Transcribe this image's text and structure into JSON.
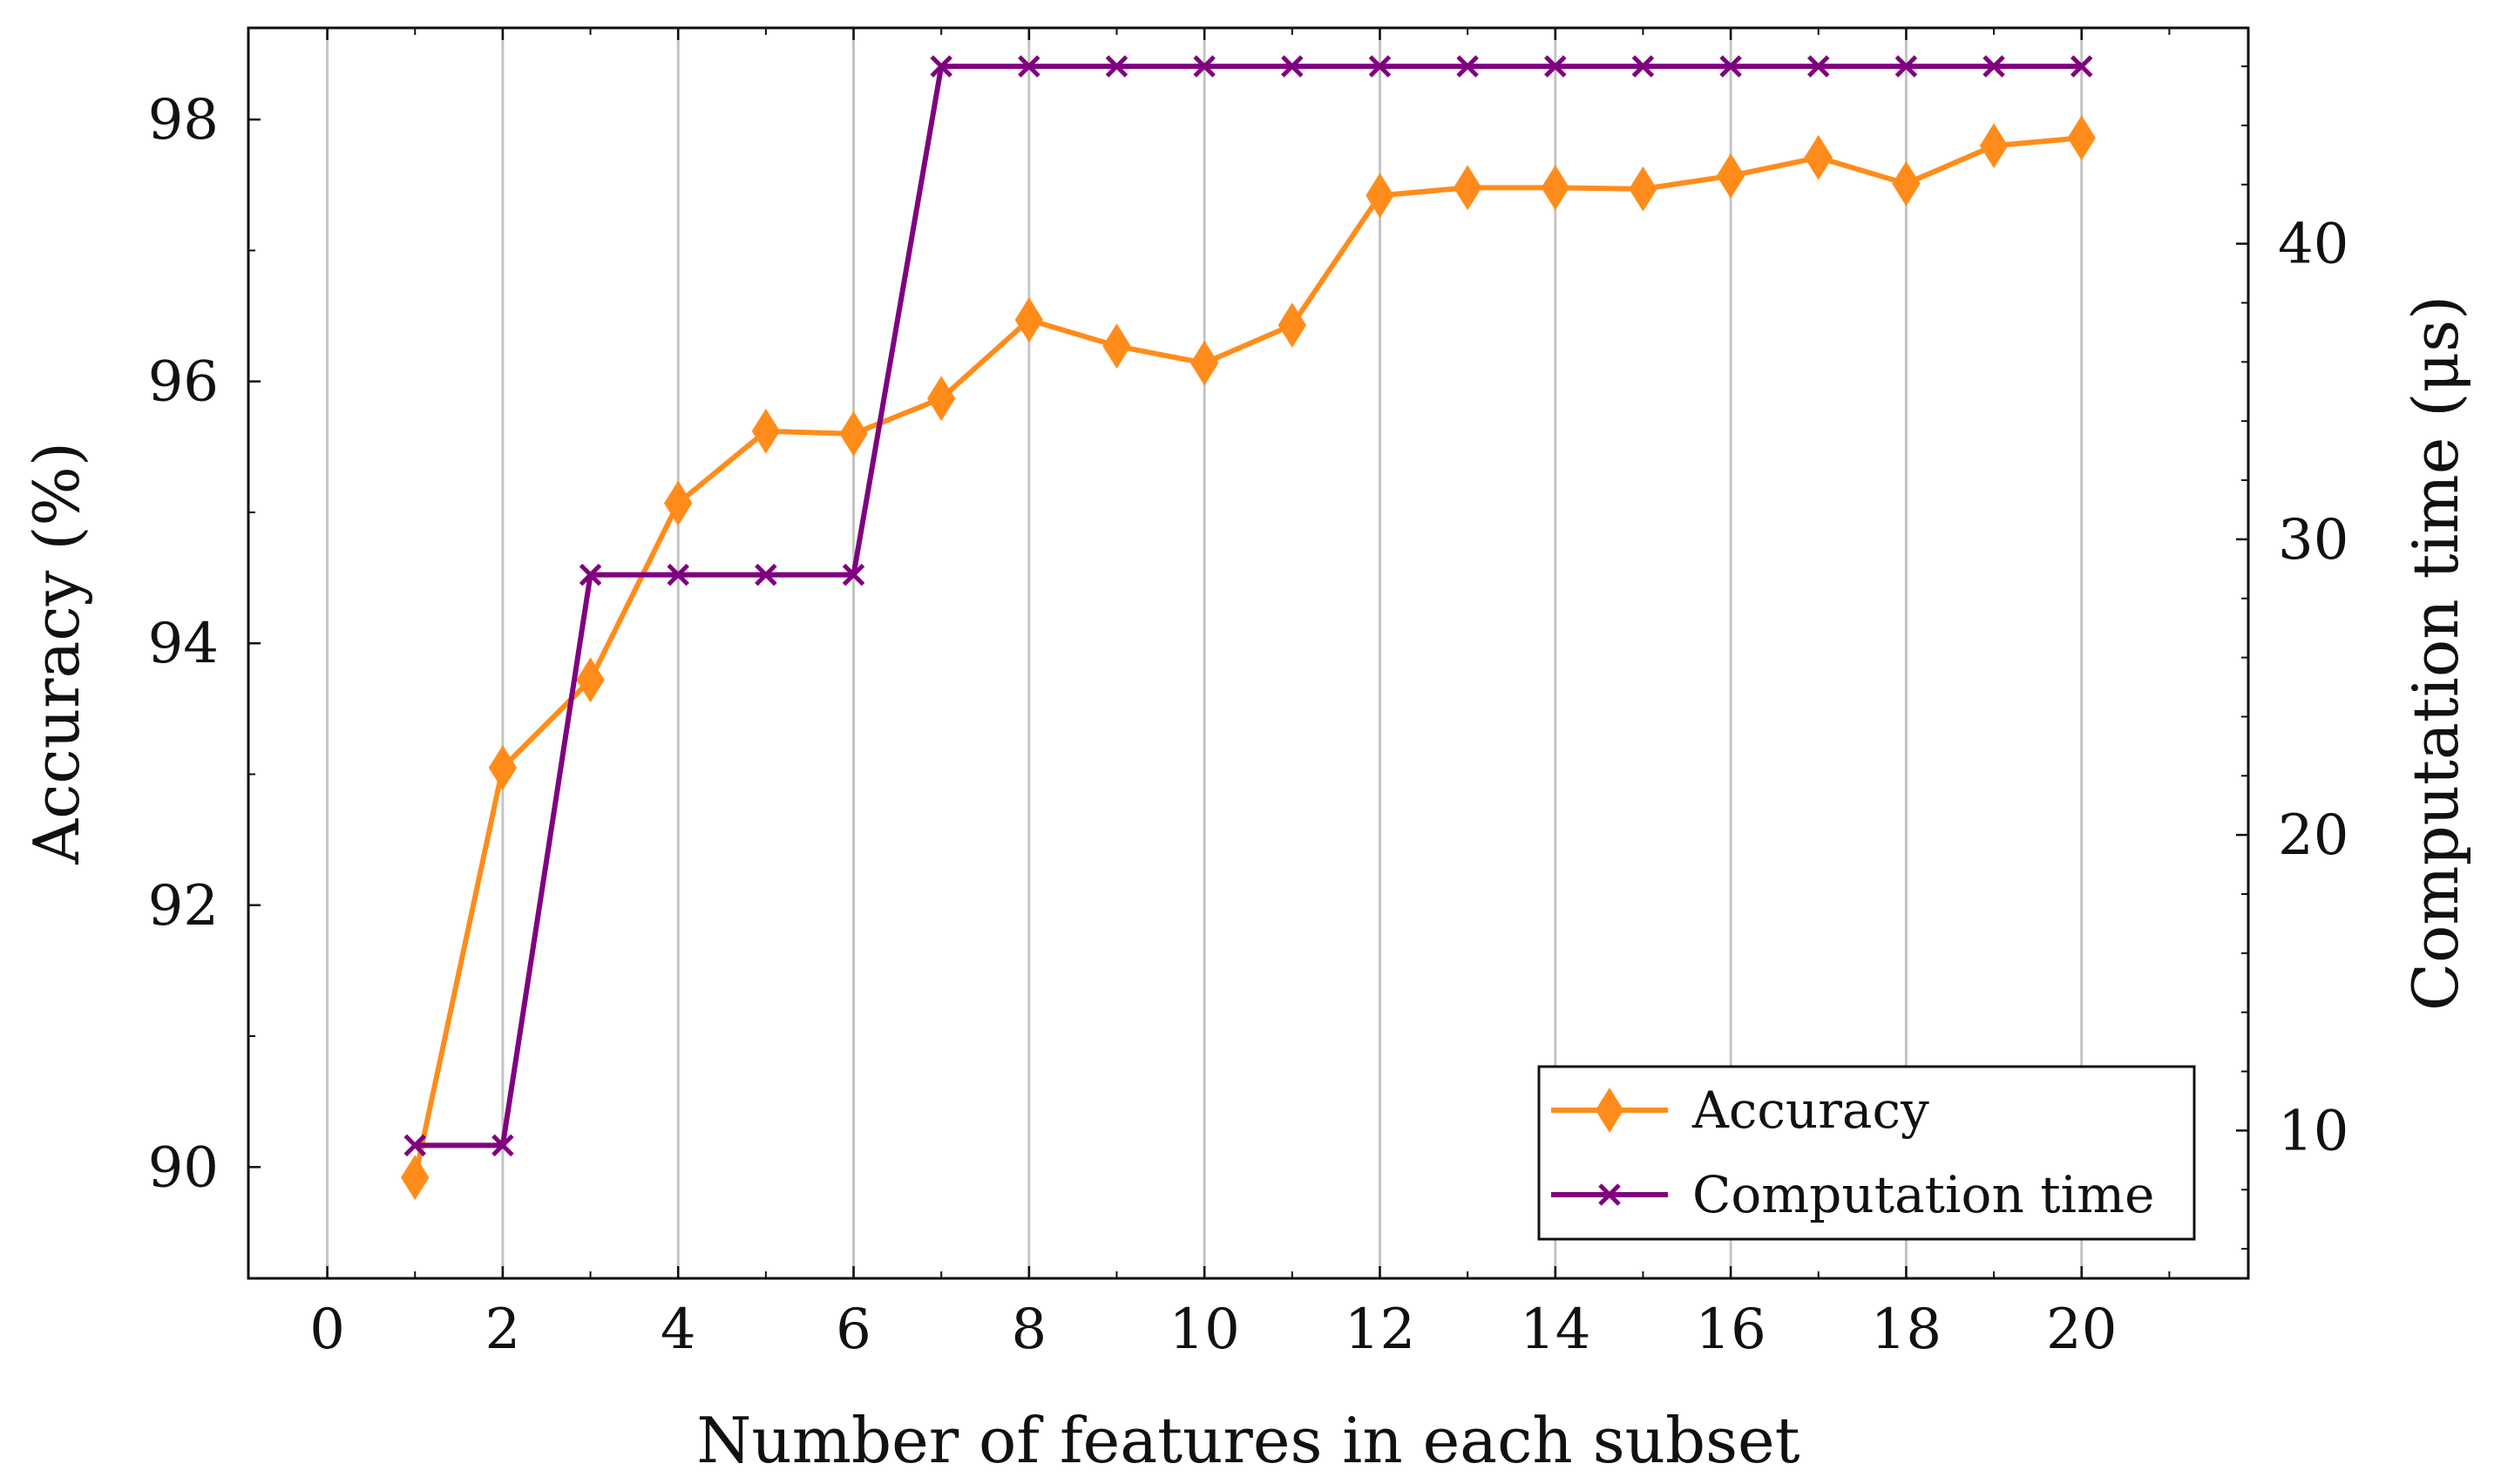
{
  "chart_data": {
    "type": "line",
    "title": "",
    "xlabel": "Number of features in each subset",
    "ylabel": "Accuracy (%)",
    "y2label": "Computation time (μs)",
    "xlim": [
      -0.9,
      21.9
    ],
    "ylim": [
      89.15,
      98.7
    ],
    "y2lim": [
      5,
      47.3
    ],
    "xticks": [
      0,
      2,
      4,
      6,
      8,
      10,
      12,
      14,
      16,
      18,
      20
    ],
    "yticks": [
      90,
      92,
      94,
      96,
      98
    ],
    "y2ticks": [
      10,
      20,
      30,
      40
    ],
    "grid": "vertical",
    "legend_position": "bottom-right",
    "x": [
      1,
      2,
      3,
      4,
      5,
      6,
      7,
      8,
      9,
      10,
      11,
      12,
      13,
      14,
      15,
      16,
      17,
      18,
      19,
      20
    ],
    "series": [
      {
        "name": "Accuracy",
        "axis": "left",
        "color": "#ff8c1a",
        "marker": "diamond",
        "values": [
          89.92,
          93.05,
          93.72,
          95.07,
          95.62,
          95.6,
          95.87,
          96.47,
          96.27,
          96.14,
          96.43,
          97.42,
          97.48,
          97.48,
          97.47,
          97.57,
          97.71,
          97.51,
          97.8,
          97.86
        ]
      },
      {
        "name": "Computation time",
        "axis": "right",
        "color": "#800080",
        "marker": "x",
        "values": [
          9.5,
          9.5,
          28.8,
          28.8,
          28.8,
          28.8,
          46,
          46,
          46,
          46,
          46,
          46,
          46,
          46,
          46,
          46,
          46,
          46,
          46,
          46
        ]
      }
    ]
  }
}
